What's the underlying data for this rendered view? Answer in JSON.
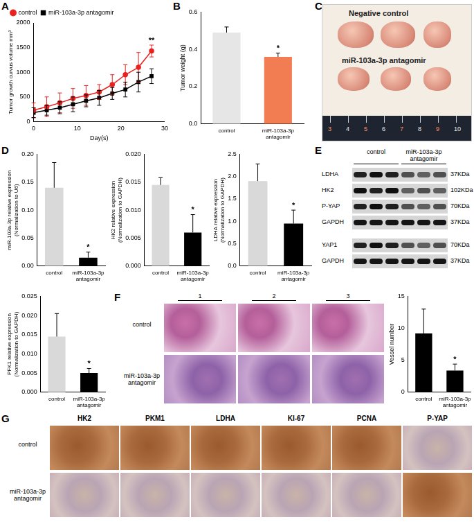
{
  "chart_data": [
    {
      "label": "A",
      "type": "line",
      "x_label": "Day(s)",
      "y_label": "Tumor growth curvus volume mm³",
      "x": [
        0,
        3,
        6,
        9,
        12,
        15,
        18,
        21,
        24,
        27
      ],
      "series": [
        {
          "name": "control",
          "color": "#e8231f",
          "marker": "circle",
          "values": [
            230,
            300,
            380,
            470,
            530,
            600,
            750,
            950,
            1100,
            1430
          ],
          "errors": [
            150,
            200,
            200,
            200,
            200,
            150,
            200,
            200,
            300,
            120
          ]
        },
        {
          "name": "miR-103a-3p antagomir",
          "color": "#000000",
          "marker": "square",
          "values": [
            180,
            230,
            280,
            350,
            420,
            480,
            570,
            650,
            800,
            920
          ],
          "errors": [
            100,
            100,
            120,
            150,
            120,
            150,
            120,
            150,
            200,
            150
          ]
        }
      ],
      "xlim": [
        0,
        30
      ],
      "xticks": [
        0,
        10,
        20,
        30
      ],
      "ylim": [
        0,
        2000
      ],
      "yticks": [
        0,
        500,
        1000,
        1500,
        2000
      ],
      "grid": false,
      "legend": "upper left",
      "annotations": [
        {
          "text": "**",
          "series": "control",
          "x": 27
        }
      ]
    },
    {
      "label": "B",
      "type": "bar",
      "y_label": "Tumor weight (g)",
      "categories": [
        "control",
        "miR-103a-3p antagomir"
      ],
      "values": [
        0.49,
        0.36
      ],
      "errors": [
        0.03,
        0.02
      ],
      "colors": [
        "#e6e6e6",
        "#f27d52"
      ],
      "ylim": [
        0,
        0.6
      ],
      "yticks": [
        {
          "value": 0,
          "label": "0.0"
        },
        0.2,
        0.4,
        0.6
      ],
      "grid": false,
      "annotations": [
        {
          "text": "*",
          "category": "miR-103a-3p antagomir"
        }
      ]
    },
    {
      "label": "D",
      "type": "bar",
      "y_label": [
        "miR-103a-3p relative expression",
        "(Normalization to U6)"
      ],
      "categories": [
        "control",
        "miR-103a-3p antagomir"
      ],
      "values": [
        0.14,
        0.015
      ],
      "errors": [
        0.045,
        0.01
      ],
      "colors": [
        "#d9d9d9",
        "#000000"
      ],
      "ylim": [
        0,
        0.2
      ],
      "yticks": [
        {
          "value": 0,
          "label": "0.00"
        },
        0.05,
        {
          "value": 0.1,
          "label": "0.10"
        },
        0.15,
        {
          "value": 0.2,
          "label": "0.20"
        }
      ],
      "grid": false,
      "annotations": [
        {
          "text": "*",
          "category": "miR-103a-3p antagomir"
        }
      ]
    },
    {
      "type": "bar",
      "y_label": [
        "HK2 relative expression",
        "(Normalization to GAPDH)"
      ],
      "categories": [
        "control",
        "miR-103a-3p antagomir"
      ],
      "values": [
        0.0145,
        0.006
      ],
      "errors": [
        0.0013,
        0.0032
      ],
      "colors": [
        "#d9d9d9",
        "#000000"
      ],
      "ylim": [
        0,
        0.02
      ],
      "yticks": [
        {
          "value": 0,
          "label": "0.000"
        },
        0.005,
        {
          "value": 0.01,
          "label": "0.010"
        },
        0.015,
        {
          "value": 0.02,
          "label": "0.020"
        }
      ],
      "grid": false,
      "annotations": [
        {
          "text": "*",
          "category": "miR-103a-3p antagomir"
        }
      ]
    },
    {
      "type": "bar",
      "y_label": [
        "LDHA relative expression",
        "(Normalization to GAPDH)"
      ],
      "categories": [
        "control",
        "miR-103a-3p antagomir"
      ],
      "values": [
        1.9,
        0.95
      ],
      "errors": [
        0.38,
        0.3
      ],
      "colors": [
        "#d9d9d9",
        "#000000"
      ],
      "ylim": [
        0,
        2.5
      ],
      "yticks": [
        {
          "value": 0,
          "label": "0.0"
        },
        0.5,
        {
          "value": 1,
          "label": "1.0"
        },
        1.5,
        {
          "value": 2,
          "label": "2.0"
        },
        2.5
      ],
      "grid": false,
      "annotations": [
        {
          "text": "*",
          "category": "miR-103a-3p antagomir"
        }
      ]
    },
    {
      "type": "bar",
      "y_label": [
        "PFK1 relative expression",
        "(Normalization to GAPDH)"
      ],
      "categories": [
        "control",
        "miR-103a-3p antagomir"
      ],
      "values": [
        0.0145,
        0.005
      ],
      "errors": [
        0.006,
        0.0012
      ],
      "colors": [
        "#d9d9d9",
        "#000000"
      ],
      "ylim": [
        0,
        0.025
      ],
      "yticks": [
        {
          "value": 0,
          "label": "0.000"
        },
        0.005,
        {
          "value": 0.01,
          "label": "0.010"
        },
        0.015,
        {
          "value": 0.02,
          "label": "0.020"
        },
        0.025
      ],
      "grid": false,
      "annotations": [
        {
          "text": "*",
          "category": "miR-103a-3p antagomir"
        }
      ]
    },
    {
      "type": "bar",
      "y_label": "Vessel number",
      "categories": [
        "control",
        "miR-103a-3p antagomir"
      ],
      "values": [
        9.2,
        3.4
      ],
      "errors": [
        3.8,
        1.0
      ],
      "colors": [
        "#000000",
        "#000000"
      ],
      "ylim": [
        0,
        15
      ],
      "yticks": [
        0,
        5,
        10,
        15
      ],
      "grid": false,
      "annotations": [
        {
          "text": "*",
          "category": "miR-103a-3p antagomir"
        }
      ]
    }
  ],
  "image_panels": {
    "C": {
      "label": "C",
      "rows": [
        "Negative control",
        "miR-103a-3p antagomir"
      ],
      "ruler": [
        "3",
        "4",
        "5",
        "6",
        "7",
        "8",
        "9",
        "10"
      ]
    },
    "E": {
      "label": "E",
      "groups": [
        "control",
        "miR-103a-3p antagomir"
      ],
      "blots": [
        [
          {
            "name": "LDHA",
            "size": "37KDa"
          },
          {
            "name": "HK2",
            "size": "102KDa"
          },
          {
            "name": "P-YAP",
            "size": "70KDa"
          },
          {
            "name": "GAPDH",
            "size": "37KDa"
          }
        ],
        [
          {
            "name": "YAP1",
            "size": "70KDa"
          },
          {
            "name": "GAPDH",
            "size": "37KDa"
          }
        ]
      ]
    },
    "F": {
      "label": "F",
      "columns": [
        "1",
        "2",
        "3"
      ],
      "rows": [
        "control",
        "miR-103a-3p antagomir"
      ]
    },
    "G": {
      "label": "G",
      "columns": [
        "HK2",
        "PKM1",
        "LDHA",
        "KI-67",
        "PCNA",
        "P-YAP"
      ],
      "rows": [
        "control",
        "miR-103a-3p antagomir"
      ]
    }
  }
}
